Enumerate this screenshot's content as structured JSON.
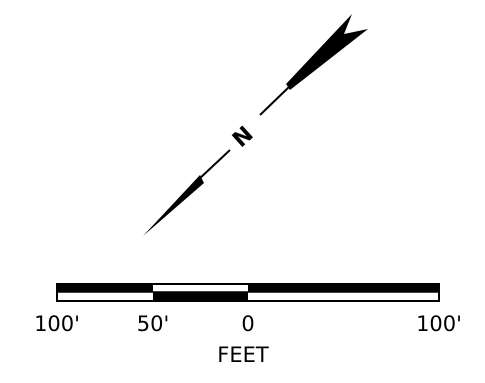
{
  "north_arrow": {
    "letter": "N",
    "icon": "north-arrow-icon"
  },
  "scale_bar": {
    "tick_labels": [
      "100'",
      "50'",
      "0",
      "100'"
    ],
    "unit": "FEET",
    "colors": {
      "fill": "#000000",
      "empty": "#ffffff"
    }
  }
}
